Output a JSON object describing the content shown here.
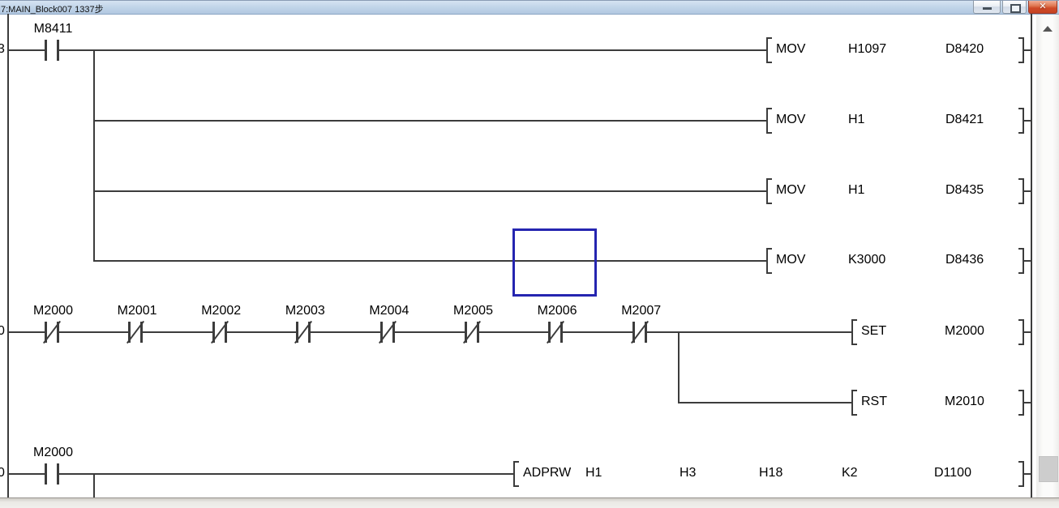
{
  "window": {
    "title": "7:MAIN_Block007 1337步",
    "close_glyph": "✕"
  },
  "ladder": {
    "step_numbers": [
      "3",
      "0",
      "0"
    ],
    "rungs": [
      {
        "contacts": [
          {
            "label": "M8411",
            "type": "NO"
          }
        ],
        "outputs": [
          {
            "mnemonic": "MOV",
            "operands": [
              "H1097",
              "D8420"
            ]
          },
          {
            "mnemonic": "MOV",
            "operands": [
              "H1",
              "D8421"
            ]
          },
          {
            "mnemonic": "MOV",
            "operands": [
              "H1",
              "D8435"
            ]
          },
          {
            "mnemonic": "MOV",
            "operands": [
              "K3000",
              "D8436"
            ]
          }
        ]
      },
      {
        "contacts": [
          {
            "label": "M2000",
            "type": "NC"
          },
          {
            "label": "M2001",
            "type": "NC"
          },
          {
            "label": "M2002",
            "type": "NC"
          },
          {
            "label": "M2003",
            "type": "NC"
          },
          {
            "label": "M2004",
            "type": "NC"
          },
          {
            "label": "M2005",
            "type": "NC"
          },
          {
            "label": "M2006",
            "type": "NC"
          },
          {
            "label": "M2007",
            "type": "NC"
          }
        ],
        "outputs": [
          {
            "mnemonic": "SET",
            "operands": [
              "M2000"
            ]
          },
          {
            "mnemonic": "RST",
            "operands": [
              "M2010"
            ]
          }
        ]
      },
      {
        "contacts": [
          {
            "label": "M2000",
            "type": "NO"
          }
        ],
        "outputs": [
          {
            "mnemonic": "ADPRW",
            "operands": [
              "H1",
              "H3",
              "H18",
              "K2",
              "D1100"
            ]
          }
        ]
      }
    ]
  }
}
